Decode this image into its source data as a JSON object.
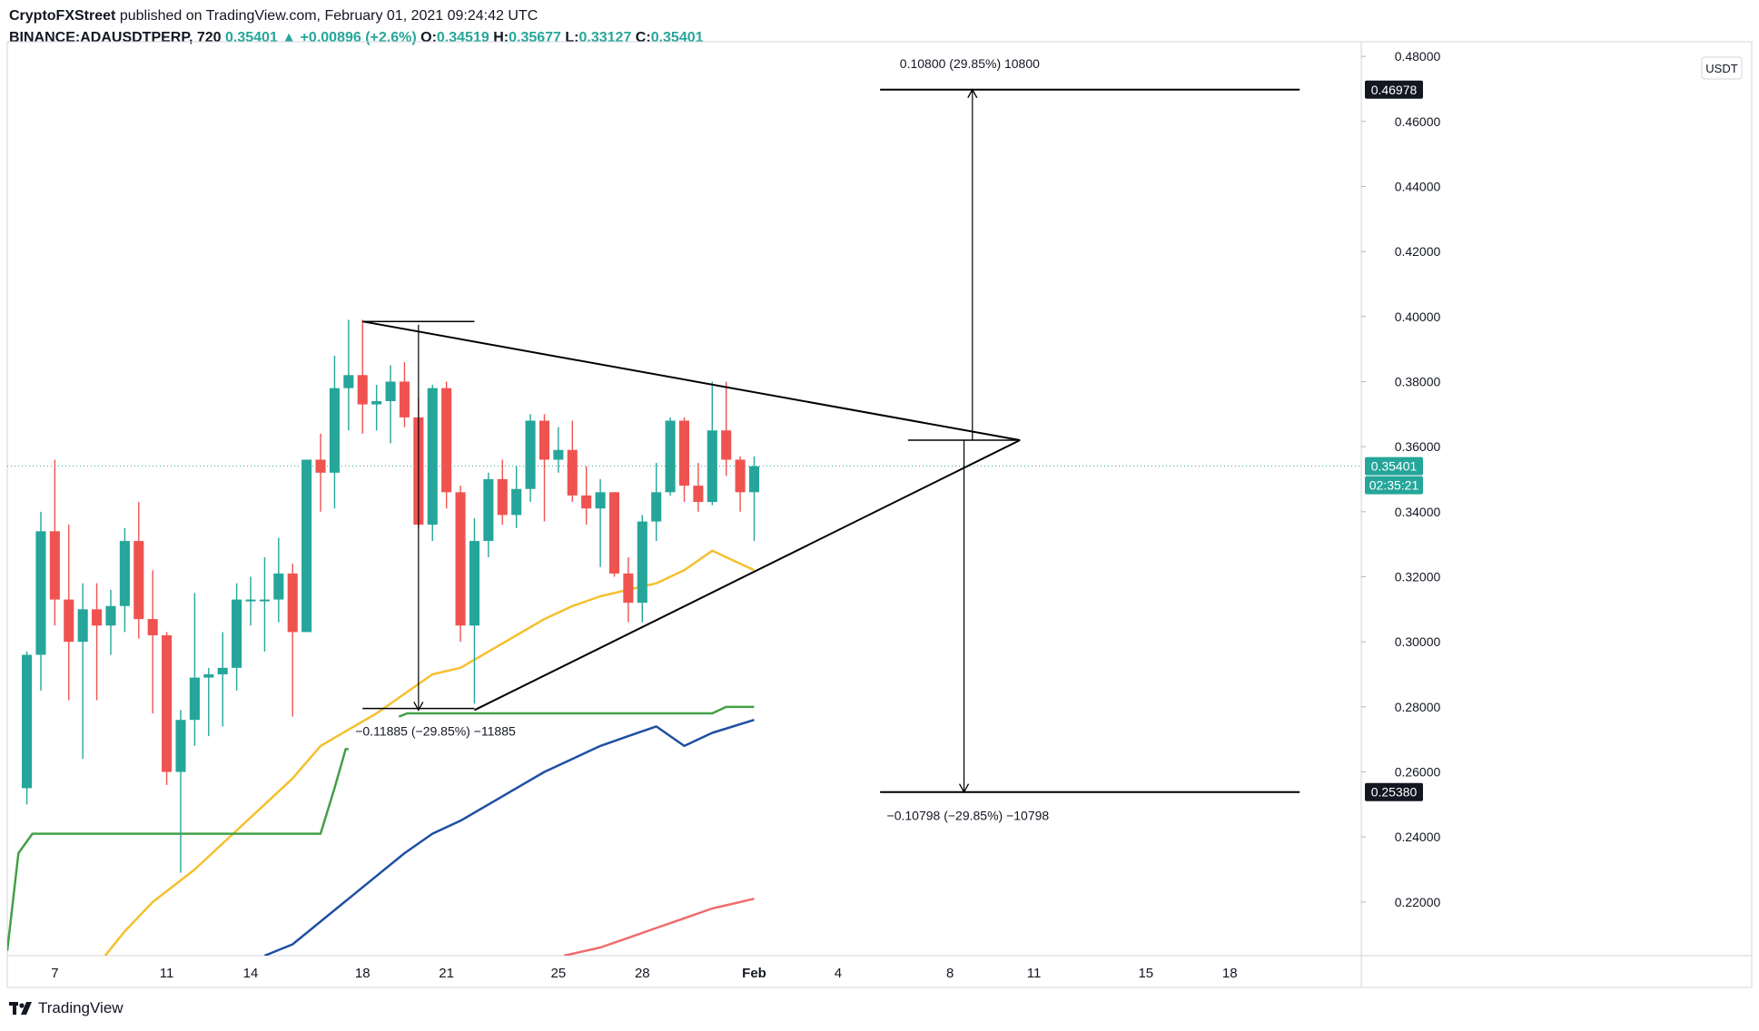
{
  "header": {
    "author": "CryptoFXStreet",
    "published": "published on TradingView.com, February 01, 2021 09:24:42 UTC",
    "symbol": "BINANCE:ADAUSDTPERP, 720",
    "last": "0.35401",
    "arrow": "▲",
    "change": "+0.00896 (+2.6%)",
    "o_label": "O:",
    "o": "0.34519",
    "h_label": "H:",
    "h": "0.35677",
    "l_label": "L:",
    "l": "0.33127",
    "c_label": "C:",
    "c": "0.35401"
  },
  "footer": {
    "brand": "TradingView"
  },
  "chart_data": {
    "type": "candlestick",
    "currency": "USDT",
    "ylim": [
      0.2035,
      0.4845
    ],
    "x_domain": [
      -0.7,
      47.7
    ],
    "y_ticks": [
      "0.22000",
      "0.24000",
      "0.26000",
      "0.28000",
      "0.30000",
      "0.32000",
      "0.34000",
      "0.36000",
      "0.38000",
      "0.40000",
      "0.42000",
      "0.44000",
      "0.46000",
      "0.48000"
    ],
    "x_ticks": [
      {
        "x": 1,
        "label": "7"
      },
      {
        "x": 5,
        "label": "11"
      },
      {
        "x": 8,
        "label": "14"
      },
      {
        "x": 12,
        "label": "18"
      },
      {
        "x": 15,
        "label": "21"
      },
      {
        "x": 19,
        "label": "25"
      },
      {
        "x": 22,
        "label": "28"
      },
      {
        "x": 26,
        "label": "Feb"
      },
      {
        "x": 29,
        "label": "4"
      },
      {
        "x": 33,
        "label": "8"
      },
      {
        "x": 36,
        "label": "11"
      },
      {
        "x": 40,
        "label": "15"
      },
      {
        "x": 43,
        "label": "18"
      }
    ],
    "candles": [
      {
        "x": 0,
        "o": 0.255,
        "h": 0.297,
        "l": 0.25,
        "c": 0.296
      },
      {
        "x": 0.5,
        "o": 0.296,
        "h": 0.34,
        "l": 0.285,
        "c": 0.334
      },
      {
        "x": 1,
        "o": 0.334,
        "h": 0.356,
        "l": 0.305,
        "c": 0.313
      },
      {
        "x": 1.5,
        "o": 0.313,
        "h": 0.336,
        "l": 0.282,
        "c": 0.3
      },
      {
        "x": 2,
        "o": 0.3,
        "h": 0.318,
        "l": 0.264,
        "c": 0.31
      },
      {
        "x": 2.5,
        "o": 0.31,
        "h": 0.318,
        "l": 0.282,
        "c": 0.305
      },
      {
        "x": 3,
        "o": 0.305,
        "h": 0.316,
        "l": 0.296,
        "c": 0.311
      },
      {
        "x": 3.5,
        "o": 0.311,
        "h": 0.335,
        "l": 0.303,
        "c": 0.331
      },
      {
        "x": 4,
        "o": 0.331,
        "h": 0.343,
        "l": 0.301,
        "c": 0.307
      },
      {
        "x": 4.5,
        "o": 0.307,
        "h": 0.322,
        "l": 0.278,
        "c": 0.302
      },
      {
        "x": 5,
        "o": 0.302,
        "h": 0.303,
        "l": 0.256,
        "c": 0.26
      },
      {
        "x": 5.5,
        "o": 0.26,
        "h": 0.279,
        "l": 0.229,
        "c": 0.276
      },
      {
        "x": 6,
        "o": 0.276,
        "h": 0.315,
        "l": 0.268,
        "c": 0.289
      },
      {
        "x": 6.5,
        "o": 0.289,
        "h": 0.292,
        "l": 0.271,
        "c": 0.29
      },
      {
        "x": 7,
        "o": 0.29,
        "h": 0.303,
        "l": 0.274,
        "c": 0.292
      },
      {
        "x": 7.5,
        "o": 0.292,
        "h": 0.318,
        "l": 0.285,
        "c": 0.313
      },
      {
        "x": 8,
        "o": 0.313,
        "h": 0.32,
        "l": 0.305,
        "c": 0.313
      },
      {
        "x": 8.5,
        "o": 0.313,
        "h": 0.326,
        "l": 0.297,
        "c": 0.313
      },
      {
        "x": 9,
        "o": 0.313,
        "h": 0.332,
        "l": 0.306,
        "c": 0.321
      },
      {
        "x": 9.5,
        "o": 0.321,
        "h": 0.324,
        "l": 0.277,
        "c": 0.303
      },
      {
        "x": 10,
        "o": 0.303,
        "h": 0.356,
        "l": 0.303,
        "c": 0.356
      },
      {
        "x": 10.5,
        "o": 0.356,
        "h": 0.364,
        "l": 0.34,
        "c": 0.352
      },
      {
        "x": 11,
        "o": 0.352,
        "h": 0.388,
        "l": 0.341,
        "c": 0.378
      },
      {
        "x": 11.5,
        "o": 0.378,
        "h": 0.399,
        "l": 0.365,
        "c": 0.382
      },
      {
        "x": 12,
        "o": 0.382,
        "h": 0.399,
        "l": 0.364,
        "c": 0.373
      },
      {
        "x": 12.5,
        "o": 0.373,
        "h": 0.379,
        "l": 0.365,
        "c": 0.374
      },
      {
        "x": 13,
        "o": 0.374,
        "h": 0.385,
        "l": 0.361,
        "c": 0.38
      },
      {
        "x": 13.5,
        "o": 0.38,
        "h": 0.386,
        "l": 0.366,
        "c": 0.369
      },
      {
        "x": 14,
        "o": 0.369,
        "h": 0.375,
        "l": 0.335,
        "c": 0.336
      },
      {
        "x": 14.5,
        "o": 0.336,
        "h": 0.379,
        "l": 0.331,
        "c": 0.378
      },
      {
        "x": 15,
        "o": 0.378,
        "h": 0.38,
        "l": 0.341,
        "c": 0.346
      },
      {
        "x": 15.5,
        "o": 0.346,
        "h": 0.348,
        "l": 0.3,
        "c": 0.305
      },
      {
        "x": 16,
        "o": 0.305,
        "h": 0.338,
        "l": 0.281,
        "c": 0.331
      },
      {
        "x": 16.5,
        "o": 0.331,
        "h": 0.352,
        "l": 0.326,
        "c": 0.35
      },
      {
        "x": 17,
        "o": 0.35,
        "h": 0.356,
        "l": 0.336,
        "c": 0.339
      },
      {
        "x": 17.5,
        "o": 0.339,
        "h": 0.354,
        "l": 0.335,
        "c": 0.347
      },
      {
        "x": 18,
        "o": 0.347,
        "h": 0.37,
        "l": 0.343,
        "c": 0.368
      },
      {
        "x": 18.5,
        "o": 0.368,
        "h": 0.37,
        "l": 0.337,
        "c": 0.356
      },
      {
        "x": 19,
        "o": 0.356,
        "h": 0.366,
        "l": 0.352,
        "c": 0.359
      },
      {
        "x": 19.5,
        "o": 0.359,
        "h": 0.368,
        "l": 0.343,
        "c": 0.345
      },
      {
        "x": 20,
        "o": 0.345,
        "h": 0.354,
        "l": 0.336,
        "c": 0.341
      },
      {
        "x": 20.5,
        "o": 0.341,
        "h": 0.35,
        "l": 0.323,
        "c": 0.346
      },
      {
        "x": 21,
        "o": 0.346,
        "h": 0.346,
        "l": 0.32,
        "c": 0.321
      },
      {
        "x": 21.5,
        "o": 0.321,
        "h": 0.326,
        "l": 0.306,
        "c": 0.312
      },
      {
        "x": 22,
        "o": 0.312,
        "h": 0.339,
        "l": 0.306,
        "c": 0.337
      },
      {
        "x": 22.5,
        "o": 0.337,
        "h": 0.355,
        "l": 0.331,
        "c": 0.346
      },
      {
        "x": 23,
        "o": 0.346,
        "h": 0.369,
        "l": 0.345,
        "c": 0.368
      },
      {
        "x": 23.5,
        "o": 0.368,
        "h": 0.369,
        "l": 0.343,
        "c": 0.348
      },
      {
        "x": 24,
        "o": 0.348,
        "h": 0.355,
        "l": 0.34,
        "c": 0.343
      },
      {
        "x": 24.5,
        "o": 0.343,
        "h": 0.38,
        "l": 0.342,
        "c": 0.365
      },
      {
        "x": 25,
        "o": 0.365,
        "h": 0.38,
        "l": 0.351,
        "c": 0.356
      },
      {
        "x": 25.5,
        "o": 0.356,
        "h": 0.357,
        "l": 0.34,
        "c": 0.346
      },
      {
        "x": 26,
        "o": 0.346,
        "h": 0.357,
        "l": 0.331,
        "c": 0.354
      }
    ],
    "indicators": [
      {
        "name": "yellow-ma",
        "color": "#f5c02c",
        "points": [
          [
            2.8,
            0.2035
          ],
          [
            3.5,
            0.211
          ],
          [
            4.5,
            0.22
          ],
          [
            6,
            0.23
          ],
          [
            7.5,
            0.242
          ],
          [
            8.5,
            0.25
          ],
          [
            9.5,
            0.258
          ],
          [
            10.5,
            0.268
          ],
          [
            11.5,
            0.273
          ],
          [
            12.5,
            0.278
          ],
          [
            13.5,
            0.284
          ],
          [
            14.5,
            0.29
          ],
          [
            15.5,
            0.292
          ],
          [
            16.5,
            0.297
          ],
          [
            17.5,
            0.302
          ],
          [
            18.5,
            0.307
          ],
          [
            19.5,
            0.311
          ],
          [
            20.5,
            0.314
          ],
          [
            21.5,
            0.316
          ],
          [
            22.5,
            0.318
          ],
          [
            23.5,
            0.322
          ],
          [
            24.5,
            0.328
          ],
          [
            26,
            0.322
          ]
        ]
      },
      {
        "name": "green-line",
        "color": "#43a047",
        "points": [
          [
            -0.7,
            0.205
          ],
          [
            -0.3,
            0.235
          ],
          [
            0.2,
            0.241
          ],
          [
            10.5,
            0.241
          ],
          [
            11,
            0.255
          ],
          [
            11.4,
            0.267
          ],
          [
            11.5,
            0.267
          ]
        ]
      },
      {
        "name": "green-line-2",
        "color": "#43a047",
        "points": [
          [
            13.3,
            0.277
          ],
          [
            13.6,
            0.278
          ],
          [
            24.5,
            0.278
          ],
          [
            25,
            0.28
          ],
          [
            26,
            0.28
          ]
        ]
      },
      {
        "name": "blue-ma",
        "color": "#1e4fa3",
        "points": [
          [
            8.5,
            0.2035
          ],
          [
            9.5,
            0.207
          ],
          [
            10.5,
            0.214
          ],
          [
            11.5,
            0.221
          ],
          [
            12.5,
            0.228
          ],
          [
            13.5,
            0.235
          ],
          [
            14.5,
            0.241
          ],
          [
            15.5,
            0.245
          ],
          [
            16.5,
            0.25
          ],
          [
            17.5,
            0.255
          ],
          [
            18.5,
            0.26
          ],
          [
            19.5,
            0.264
          ],
          [
            20.5,
            0.268
          ],
          [
            21.5,
            0.271
          ],
          [
            22.5,
            0.274
          ],
          [
            23.5,
            0.268
          ],
          [
            24.5,
            0.272
          ],
          [
            26,
            0.276
          ]
        ]
      },
      {
        "name": "red-ma",
        "color": "#ef6b6b",
        "points": [
          [
            19.2,
            0.2035
          ],
          [
            20.5,
            0.206
          ],
          [
            21.5,
            0.209
          ],
          [
            22.5,
            0.212
          ],
          [
            23.5,
            0.215
          ],
          [
            24.5,
            0.218
          ],
          [
            26,
            0.221
          ]
        ]
      }
    ],
    "drawings": {
      "triangle_upper": [
        [
          12,
          0.3985
        ],
        [
          35.5,
          0.362
        ]
      ],
      "triangle_lower": [
        [
          16,
          0.279
        ],
        [
          35.5,
          0.362
        ]
      ],
      "measure_top_bar": [
        [
          12,
          0.3985
        ],
        [
          16,
          0.3985
        ]
      ],
      "measure_bottom_bar": [
        [
          12,
          0.2795
        ],
        [
          16,
          0.2795
        ]
      ],
      "measure_arrow": [
        [
          14,
          0.3975
        ],
        [
          14,
          0.279
        ]
      ],
      "measure_left_label": "−0.11885  (−29.85%)  −11885",
      "apex_bar": [
        [
          31.5,
          0.362
        ],
        [
          35.5,
          0.362
        ]
      ],
      "target_up_line": [
        [
          30.5,
          0.46978
        ],
        [
          45.5,
          0.46978
        ]
      ],
      "target_up_arrow": [
        [
          33.8,
          0.362
        ],
        [
          33.8,
          0.46978
        ]
      ],
      "target_up_label": "0.10800  (29.85%)  10800",
      "target_down_line": [
        [
          30.5,
          0.2538
        ],
        [
          45.5,
          0.2538
        ]
      ],
      "target_down_arrow": [
        [
          33.5,
          0.362
        ],
        [
          33.5,
          0.2538
        ]
      ],
      "target_down_label": "−0.10798  (−29.85%)  −10798",
      "last_price": 0.35401
    },
    "price_badges": [
      {
        "value": 0.46978,
        "label": "0.46978",
        "bg": "#131722",
        "fg": "#ffffff"
      },
      {
        "value": 0.35401,
        "label": "0.35401",
        "bg": "#26a69a",
        "fg": "#ffffff"
      },
      {
        "value": 0.2538,
        "label": "0.25380",
        "bg": "#131722",
        "fg": "#ffffff"
      }
    ],
    "countdown": "02:35:21",
    "colors": {
      "up": "#26a69a",
      "down": "#ef5350",
      "text": "#131722",
      "grid": "#f0f3fa"
    }
  }
}
